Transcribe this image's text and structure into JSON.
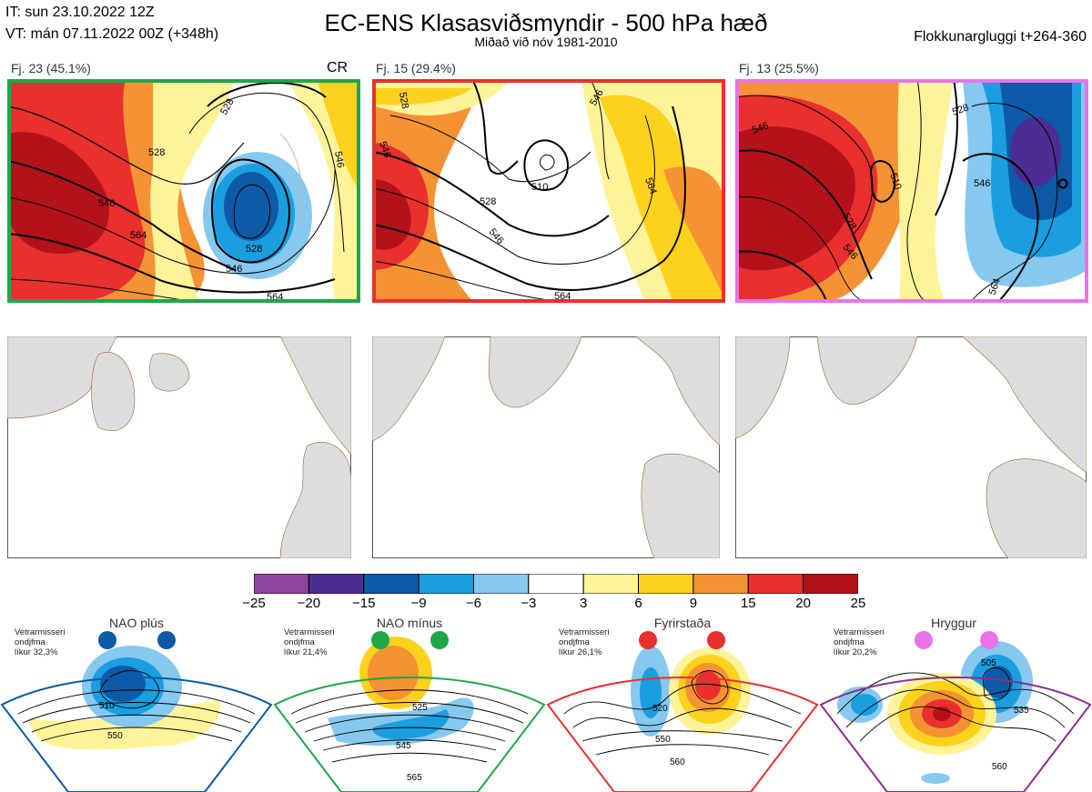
{
  "header": {
    "init_time": "IT: sun 23.10.2022 12Z",
    "valid_time": "VT: mán 07.11.2022 00Z  (+348h)",
    "title": "EC-ENS Klasasviðsmyndir - 500 hPa hæð",
    "subtitle": "Miðað við nóv 1981-2010",
    "window": "Flokkunargluggi t+264-360"
  },
  "clusters": [
    {
      "label": "Fj. 23 (45.1%)",
      "extra": "CR",
      "frame_color": "#1fa64a",
      "contour_labels": [
        "528",
        "528",
        "546",
        "564",
        "528",
        "546",
        "564",
        "546"
      ]
    },
    {
      "label": "Fj. 15 (29.4%)",
      "extra": "",
      "frame_color": "#e8302e",
      "contour_labels": [
        "528",
        "546",
        "546",
        "510",
        "528",
        "546",
        "564",
        "564"
      ]
    },
    {
      "label": "Fj. 13 (25.5%)",
      "extra": "",
      "frame_color": "#e873e8",
      "contour_labels": [
        "546",
        "510",
        "528",
        "546",
        "528",
        "546",
        "564"
      ]
    }
  ],
  "colorbar": {
    "ticks": [
      "−25",
      "−20",
      "−15",
      "−9",
      "−6",
      "−3",
      "3",
      "6",
      "9",
      "15",
      "20",
      "25"
    ],
    "colors": [
      "#8b459c",
      "#4b2d94",
      "#0e5aa6",
      "#1a9ee0",
      "#86c8ee",
      "#ffffff",
      "#fff39a",
      "#fcd21d",
      "#f59233",
      "#e8302e",
      "#b3121b"
    ]
  },
  "regimes": [
    {
      "name": "NAO plús",
      "note": [
        "Vetrarmisseri",
        "ondjfma",
        "líkur 32,3%"
      ],
      "color": "#0e5aa6",
      "contour_labels": [
        "510",
        "550"
      ]
    },
    {
      "name": "NAO mínus",
      "note": [
        "Vetrarmisseri",
        "ondjfma",
        "líkur 21,4%"
      ],
      "color": "#1fa64a",
      "contour_labels": [
        "525",
        "545",
        "565"
      ]
    },
    {
      "name": "Fyrirstaða",
      "note": [
        "Vetrarmisseri",
        "ondjfma",
        "líkur 26,1%"
      ],
      "color": "#e8302e",
      "contour_labels": [
        "520",
        "550",
        "560"
      ]
    },
    {
      "name": "Hryggur",
      "note": [
        "Vetrarmisseri",
        "ondjfma",
        "líkur 20,2%"
      ],
      "color": "#e873e8",
      "contour_labels": [
        "505",
        "535",
        "560"
      ]
    }
  ]
}
